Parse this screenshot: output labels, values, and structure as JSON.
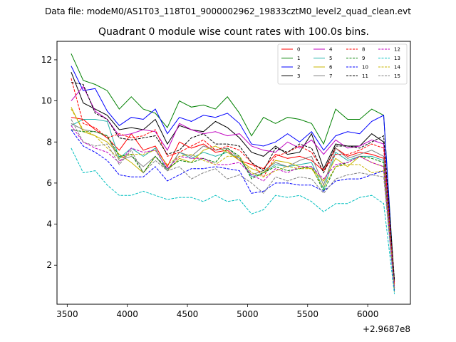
{
  "chart_data": {
    "type": "line",
    "suptitle": "Data file: modeM0/AS1T03_118T01_9000002962_19833cztM0_level2_quad_clean.evt",
    "title": "Quadrant 0 module wise count rates with 100.0s bins.",
    "xlabel": "",
    "ylabel": "",
    "x_offset_label": "+2.9687e8",
    "xlim": [
      3415,
      6355
    ],
    "ylim": [
      0.1,
      12.9
    ],
    "xticks": [
      3500,
      4000,
      4500,
      5000,
      5500,
      6000
    ],
    "xtick_labels": [
      "3500",
      "4000",
      "4500",
      "5000",
      "5500",
      "6000"
    ],
    "yticks": [
      2,
      4,
      6,
      8,
      10,
      12
    ],
    "ytick_labels": [
      "2",
      "4",
      "6",
      "8",
      "10",
      "12"
    ],
    "legend_position": "top-right",
    "x": [
      3533,
      3633,
      3733,
      3833,
      3933,
      4033,
      4133,
      4233,
      4333,
      4433,
      4533,
      4633,
      4733,
      4833,
      4933,
      5033,
      5133,
      5233,
      5333,
      5433,
      5533,
      5633,
      5733,
      5833,
      5933,
      6033,
      6133,
      6222
    ],
    "series": [
      {
        "name": "0",
        "color": "#ff0000",
        "dash": "solid",
        "values": [
          9.2,
          9.1,
          8.6,
          8.2,
          7.6,
          8.4,
          7.6,
          7.8,
          6.8,
          8.0,
          7.7,
          7.9,
          7.5,
          7.6,
          7.1,
          6.9,
          6.7,
          7.4,
          7.2,
          7.3,
          7.1,
          6.6,
          7.7,
          7.3,
          7.5,
          7.4,
          7.2,
          1.2
        ]
      },
      {
        "name": "1",
        "color": "#008000",
        "dash": "solid",
        "values": [
          12.3,
          11.0,
          10.8,
          10.5,
          9.6,
          10.2,
          9.6,
          9.4,
          8.7,
          10.0,
          9.7,
          9.8,
          9.6,
          10.2,
          9.4,
          8.3,
          9.2,
          8.9,
          9.2,
          9.1,
          8.9,
          7.9,
          9.6,
          9.1,
          9.1,
          9.6,
          9.3,
          1.1
        ]
      },
      {
        "name": "2",
        "color": "#0000ff",
        "dash": "solid",
        "values": [
          11.7,
          10.5,
          10.6,
          9.5,
          8.8,
          9.2,
          9.1,
          9.6,
          8.4,
          9.2,
          9.0,
          9.3,
          9.2,
          9.4,
          8.9,
          7.9,
          7.8,
          8.0,
          8.4,
          8.0,
          8.5,
          7.6,
          8.3,
          8.5,
          8.4,
          9.0,
          9.3,
          0.9
        ]
      },
      {
        "name": "3",
        "color": "#000000",
        "dash": "solid",
        "values": [
          11.4,
          9.9,
          9.6,
          9.3,
          8.6,
          8.7,
          8.6,
          9.1,
          7.9,
          8.8,
          8.6,
          8.5,
          9.0,
          8.7,
          8.2,
          7.5,
          7.3,
          7.8,
          7.4,
          7.5,
          8.4,
          6.7,
          7.9,
          7.8,
          7.8,
          8.4,
          8.0,
          1.2
        ]
      },
      {
        "name": "4",
        "color": "#c000c0",
        "dash": "solid",
        "values": [
          10.0,
          10.7,
          9.5,
          9.1,
          8.3,
          8.4,
          8.6,
          8.5,
          7.6,
          8.9,
          8.6,
          8.4,
          8.5,
          8.3,
          8.4,
          7.8,
          7.6,
          7.5,
          8.0,
          7.7,
          8.1,
          7.4,
          8.1,
          7.7,
          7.8,
          8.1,
          7.9,
          1.0
        ]
      },
      {
        "name": "5",
        "color": "#20b2aa",
        "dash": "solid",
        "values": [
          8.8,
          9.1,
          9.1,
          9.0,
          7.2,
          7.7,
          7.3,
          7.7,
          6.6,
          7.5,
          7.2,
          7.5,
          7.3,
          7.5,
          7.2,
          6.3,
          6.5,
          6.9,
          6.8,
          6.9,
          7.0,
          5.7,
          7.5,
          7.1,
          7.3,
          7.3,
          7.1,
          0.8
        ]
      },
      {
        "name": "6",
        "color": "#c8b400",
        "dash": "solid",
        "values": [
          9.7,
          8.5,
          8.3,
          8.0,
          7.4,
          7.0,
          6.5,
          7.3,
          6.6,
          7.2,
          7.0,
          7.6,
          7.8,
          7.5,
          7.1,
          6.7,
          6.5,
          7.1,
          7.0,
          6.8,
          6.7,
          6.1,
          7.2,
          6.8,
          7.3,
          7.0,
          6.8,
          0.7
        ]
      },
      {
        "name": "7",
        "color": "#808080",
        "dash": "solid",
        "values": [
          8.9,
          8.6,
          8.5,
          8.3,
          7.1,
          7.3,
          6.8,
          7.3,
          6.6,
          7.5,
          7.3,
          7.8,
          7.6,
          7.7,
          7.2,
          6.4,
          6.6,
          7.0,
          6.8,
          7.1,
          7.3,
          5.9,
          7.7,
          7.2,
          7.4,
          7.6,
          7.3,
          0.9
        ]
      },
      {
        "name": "8",
        "color": "#ff0000",
        "dash": "dashed",
        "values": [
          11.1,
          8.9,
          8.7,
          8.2,
          8.4,
          8.2,
          8.3,
          8.6,
          7.3,
          7.5,
          7.8,
          8.1,
          7.6,
          7.8,
          7.6,
          7.0,
          6.3,
          7.3,
          7.5,
          7.8,
          7.5,
          6.6,
          7.4,
          7.4,
          7.6,
          7.9,
          7.7,
          1.1
        ]
      },
      {
        "name": "9",
        "color": "#008000",
        "dash": "dashed",
        "values": [
          8.6,
          8.5,
          8.5,
          8.3,
          7.3,
          7.4,
          6.5,
          7.3,
          6.7,
          7.1,
          7.0,
          7.2,
          7.0,
          7.7,
          7.3,
          6.2,
          6.5,
          6.8,
          6.6,
          6.7,
          6.8,
          5.6,
          6.8,
          7.0,
          7.3,
          7.2,
          7.0,
          0.8
        ]
      },
      {
        "name": "10",
        "color": "#0000ff",
        "dash": "dashed",
        "values": [
          8.6,
          7.8,
          7.5,
          7.1,
          6.4,
          6.3,
          6.3,
          6.8,
          6.1,
          6.4,
          6.7,
          6.7,
          6.8,
          6.7,
          6.6,
          5.5,
          5.6,
          6.0,
          6.0,
          5.9,
          5.9,
          5.6,
          6.1,
          6.2,
          6.2,
          6.4,
          6.6,
          0.7
        ]
      },
      {
        "name": "11",
        "color": "#000000",
        "dash": "dashed",
        "values": [
          10.9,
          10.8,
          9.4,
          9.1,
          8.2,
          8.1,
          8.2,
          8.3,
          7.4,
          7.6,
          8.2,
          8.4,
          7.9,
          7.9,
          7.8,
          7.0,
          6.6,
          7.7,
          7.5,
          7.9,
          7.7,
          6.5,
          7.8,
          7.8,
          7.7,
          8.0,
          8.3,
          1.3
        ]
      },
      {
        "name": "12",
        "color": "#c000c0",
        "dash": "dashed",
        "values": [
          8.8,
          8.0,
          7.7,
          7.5,
          7.0,
          7.7,
          7.5,
          7.6,
          6.7,
          7.3,
          7.2,
          7.2,
          6.9,
          6.9,
          7.0,
          6.4,
          6.1,
          6.7,
          6.5,
          6.8,
          6.8,
          6.2,
          6.9,
          7.0,
          7.3,
          7.0,
          6.8,
          0.9
        ]
      },
      {
        "name": "13",
        "color": "#00bfbf",
        "dash": "dashed",
        "values": [
          7.7,
          6.5,
          6.6,
          5.9,
          5.4,
          5.4,
          5.6,
          5.4,
          5.2,
          5.3,
          5.3,
          5.1,
          5.4,
          5.1,
          5.2,
          4.5,
          4.7,
          5.4,
          5.3,
          5.4,
          5.1,
          4.6,
          5.0,
          5.0,
          5.3,
          5.4,
          5.0,
          0.6
        ]
      },
      {
        "name": "14",
        "color": "#c8b400",
        "dash": "dashed",
        "values": [
          9.6,
          8.6,
          8.3,
          7.7,
          7.2,
          7.4,
          7.4,
          7.6,
          6.9,
          7.3,
          7.4,
          7.1,
          6.9,
          7.3,
          7.3,
          6.5,
          6.3,
          6.6,
          6.8,
          6.7,
          6.7,
          5.8,
          6.8,
          6.9,
          6.9,
          6.5,
          6.6,
          0.9
        ]
      },
      {
        "name": "15",
        "color": "#808080",
        "dash": "dashed",
        "values": [
          9.1,
          8.0,
          7.8,
          7.9,
          6.9,
          7.6,
          6.5,
          7.1,
          6.6,
          6.8,
          6.2,
          6.5,
          6.7,
          6.2,
          6.4,
          6.0,
          5.5,
          6.3,
          6.1,
          6.3,
          6.2,
          5.5,
          6.2,
          6.4,
          6.5,
          6.4,
          6.3,
          0.8
        ]
      }
    ]
  }
}
